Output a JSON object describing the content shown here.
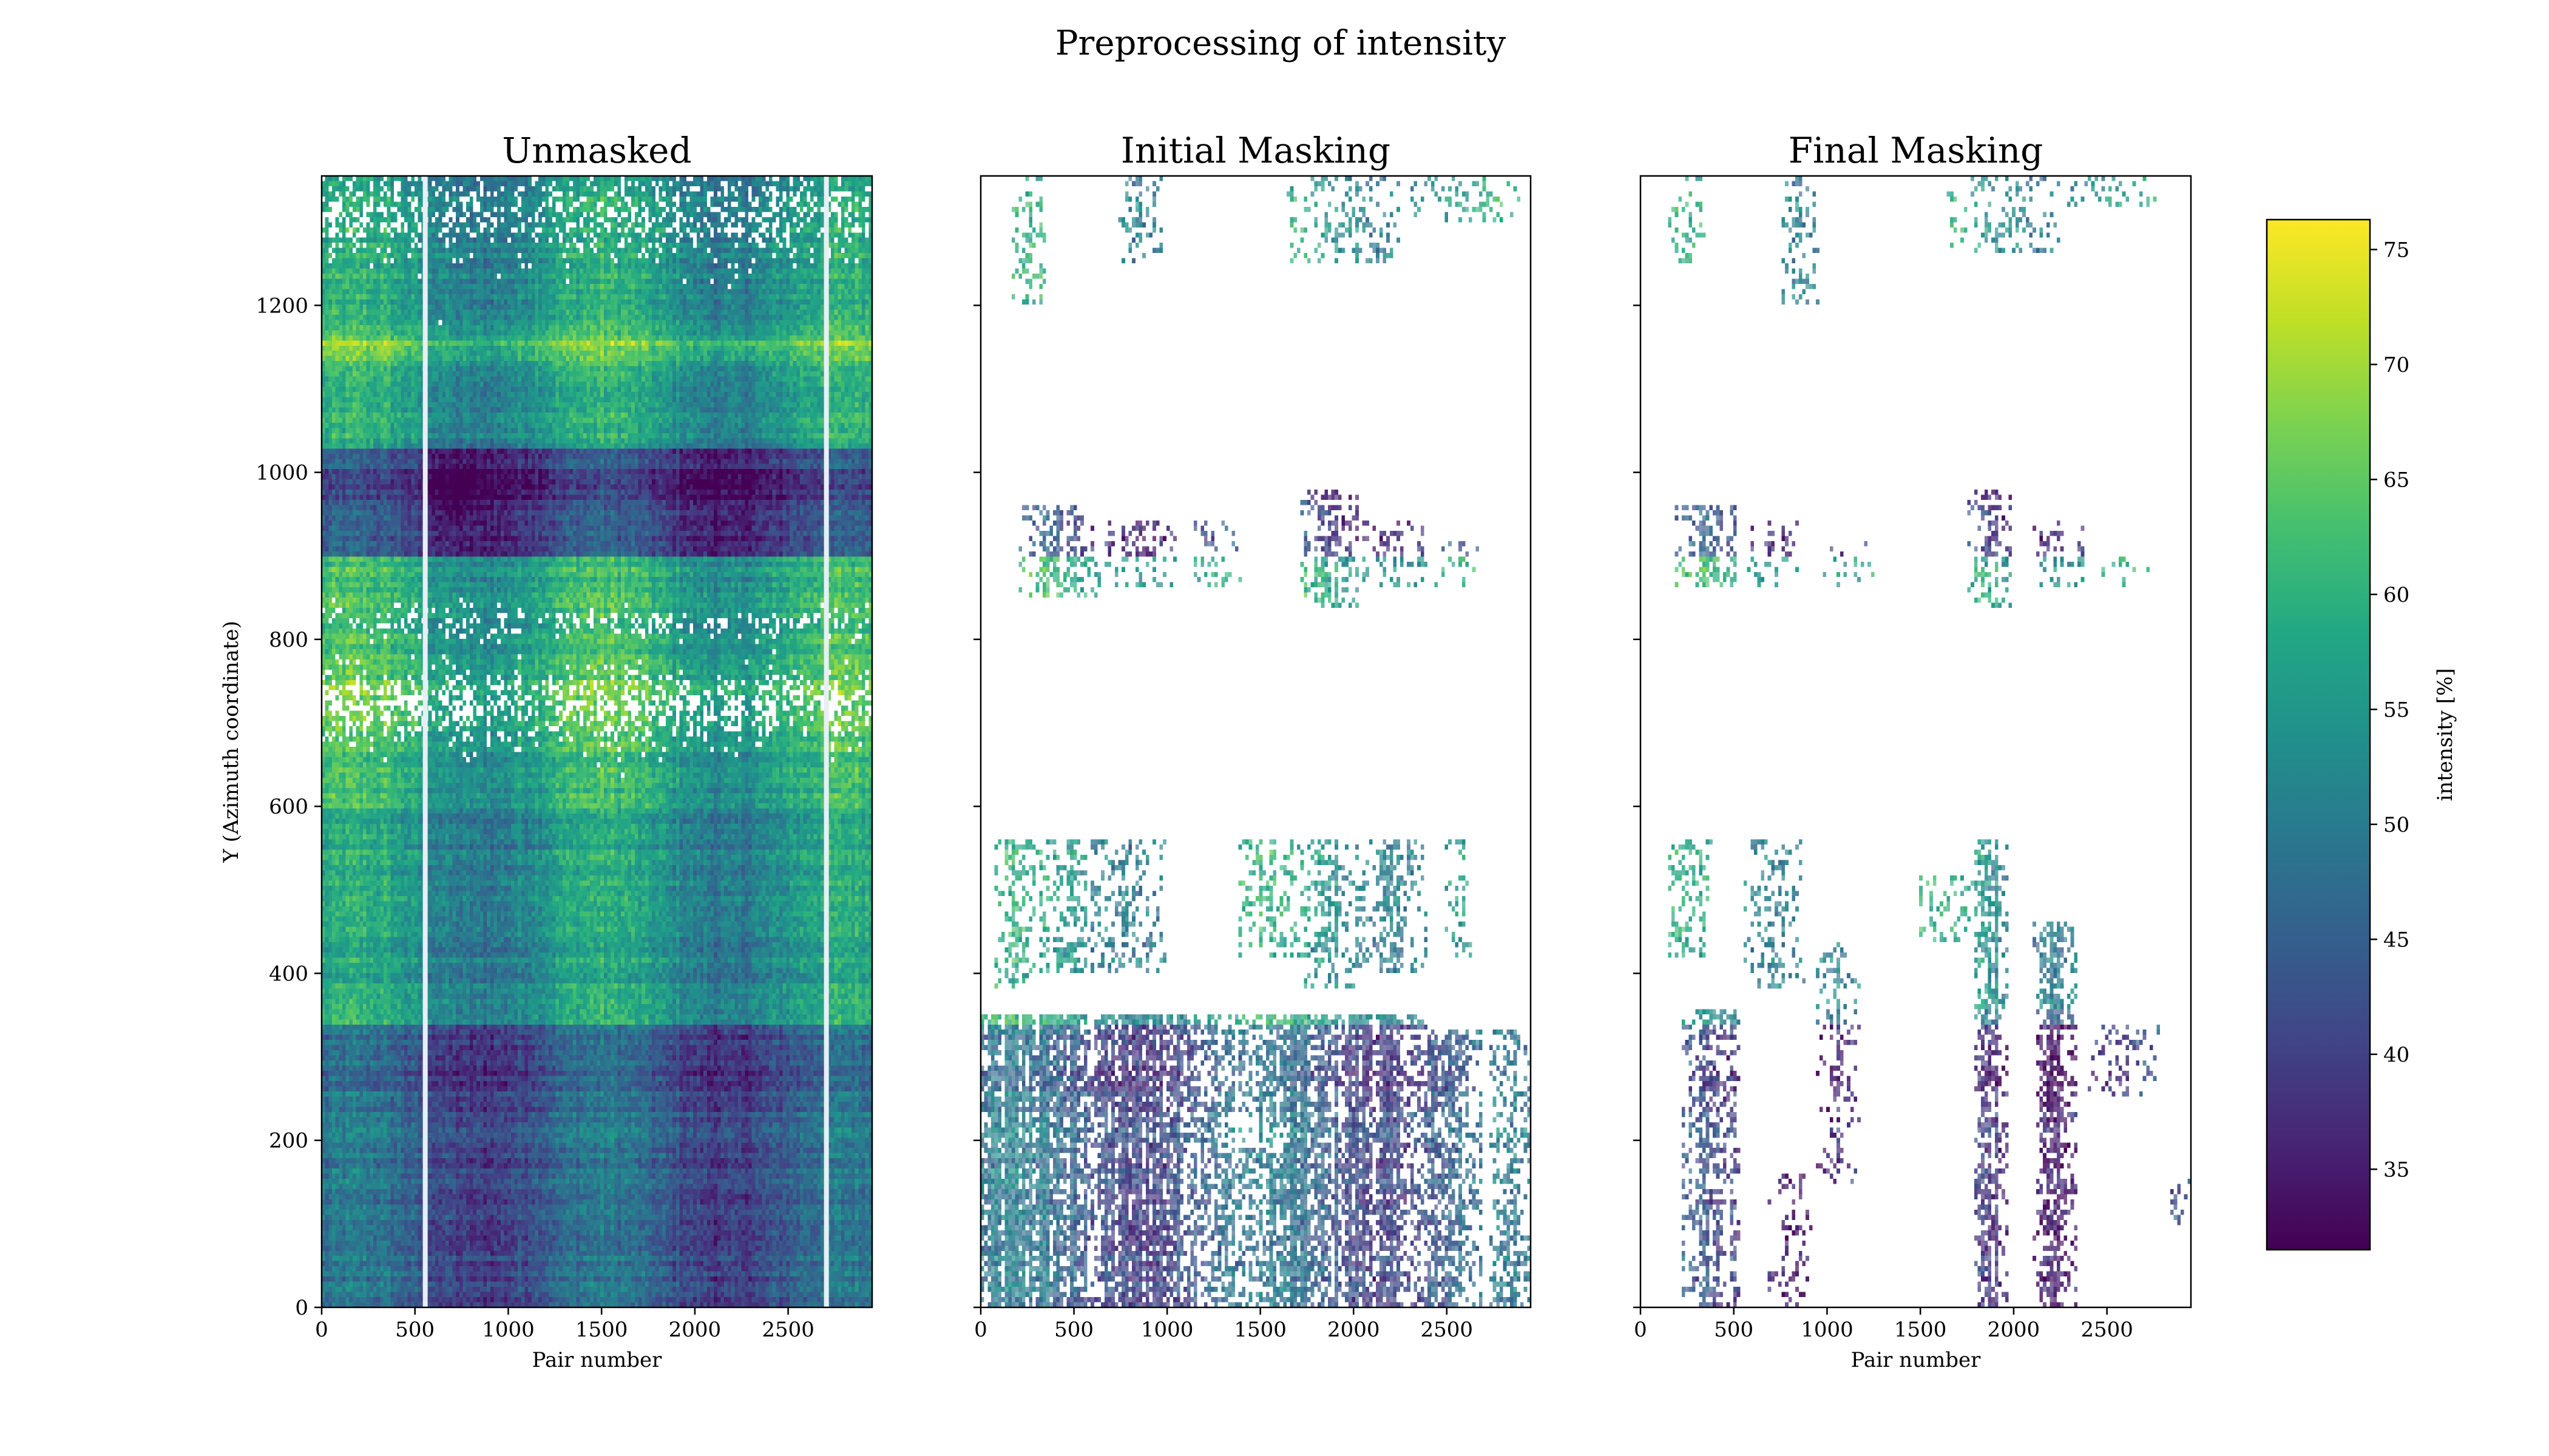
{
  "figure": {
    "title": "Preprocessing of intensity"
  },
  "colors": {
    "viridis": [
      "#440154",
      "#482475",
      "#414487",
      "#355f8d",
      "#2a788e",
      "#21918c",
      "#22a884",
      "#44bf70",
      "#7ad151",
      "#bddf26",
      "#fde725"
    ]
  },
  "chart_data": [
    {
      "type": "heatmap",
      "title": "Unmasked",
      "xlabel": "Pair number",
      "ylabel": "Y (Azimuth coordinate)",
      "xlim": [
        0,
        2950
      ],
      "ylim": [
        0,
        1355
      ],
      "xticks": [
        0,
        500,
        1000,
        1500,
        2000,
        2500
      ],
      "yticks": [
        0,
        200,
        400,
        600,
        800,
        1000,
        1200
      ],
      "show_xticklabels": true,
      "show_yticklabels": true,
      "mask": "none"
    },
    {
      "type": "heatmap",
      "title": "Initial Masking",
      "xlabel": "",
      "ylabel": "",
      "xlim": [
        0,
        2950
      ],
      "ylim": [
        0,
        1355
      ],
      "xticks": [
        0,
        500,
        1000,
        1500,
        2000,
        2500
      ],
      "yticks": [
        0,
        200,
        400,
        600,
        800,
        1000,
        1200
      ],
      "show_xticklabels": true,
      "show_yticklabels": false,
      "mask": "initial"
    },
    {
      "type": "heatmap",
      "title": "Final Masking",
      "xlabel": "Pair number",
      "ylabel": "",
      "xlim": [
        0,
        2950
      ],
      "ylim": [
        0,
        1355
      ],
      "xticks": [
        0,
        500,
        1000,
        1500,
        2000,
        2500
      ],
      "yticks": [
        0,
        200,
        400,
        600,
        800,
        1000,
        1200
      ],
      "show_xticklabels": true,
      "show_yticklabels": false,
      "mask": "final"
    }
  ],
  "colorbar": {
    "label": "intensity [%]",
    "min": 31.5,
    "max": 76.3,
    "ticks": [
      35,
      40,
      45,
      50,
      55,
      60,
      65,
      70,
      75
    ]
  }
}
